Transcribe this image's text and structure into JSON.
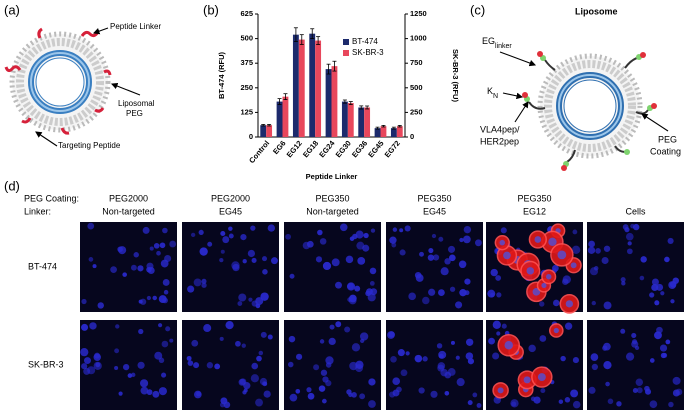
{
  "panel_labels": [
    "(a)",
    "(b)",
    "(c)",
    "(d)"
  ],
  "diagram_a": {
    "peptide_linker": "Peptide Linker",
    "liposomal_peg": [
      "Liposomal",
      "PEG"
    ],
    "targeting_peptide": "Targeting Peptide"
  },
  "diagram_c": {
    "title": "Liposome",
    "eg_linker": {
      "main": "EG",
      "sub": "linker"
    },
    "kn": {
      "main": "K",
      "sub": "N"
    },
    "peptide": [
      "VLA4pep/",
      "HER2pep"
    ],
    "peg_coating": [
      "PEG",
      "Coating"
    ]
  },
  "chart_data": {
    "type": "bar",
    "categories": [
      "Control",
      "EG6",
      "EG12",
      "EG18",
      "EG24",
      "EG30",
      "EG36",
      "EG45",
      "EG72"
    ],
    "series": [
      {
        "name": "BT-474",
        "color": "#1c2a6c",
        "values": [
          60,
          180,
          520,
          525,
          345,
          180,
          150,
          45,
          45
        ],
        "errors": [
          4,
          15,
          35,
          25,
          25,
          8,
          8,
          5,
          5
        ]
      },
      {
        "name": "SK-BR-3",
        "color": "#e8475c",
        "axis": "y2",
        "values": [
          120,
          410,
          990,
          980,
          720,
          345,
          300,
          110,
          110
        ],
        "errors": [
          8,
          30,
          50,
          40,
          50,
          15,
          15,
          8,
          8
        ]
      }
    ],
    "ylim": [
      0,
      625
    ],
    "yticks": [
      0,
      125,
      250,
      375,
      500,
      625
    ],
    "y2lim": [
      0,
      1250
    ],
    "y2ticks": [
      0,
      250,
      500,
      750,
      1000,
      1250
    ],
    "ylabel": "BT-474 (RFU)",
    "ylabel_color": "#2a3f9e",
    "y2label": "SK-BR-3 (RFU)",
    "y2label_color": "#a0203a",
    "xlabel": "Peptide Linker",
    "legend": "upper right"
  },
  "micrographs": {
    "row_headers": [
      "PEG Coating:",
      "Linker:"
    ],
    "columns": [
      [
        "PEG2000",
        "Non-targeted"
      ],
      [
        "PEG2000",
        "EG45"
      ],
      [
        "PEG350",
        "Non-targeted"
      ],
      [
        "PEG350",
        "EG45"
      ],
      [
        "PEG350",
        "EG12"
      ],
      [
        "Cells"
      ]
    ],
    "rows": [
      "BT-474",
      "SK-BR-3"
    ]
  }
}
